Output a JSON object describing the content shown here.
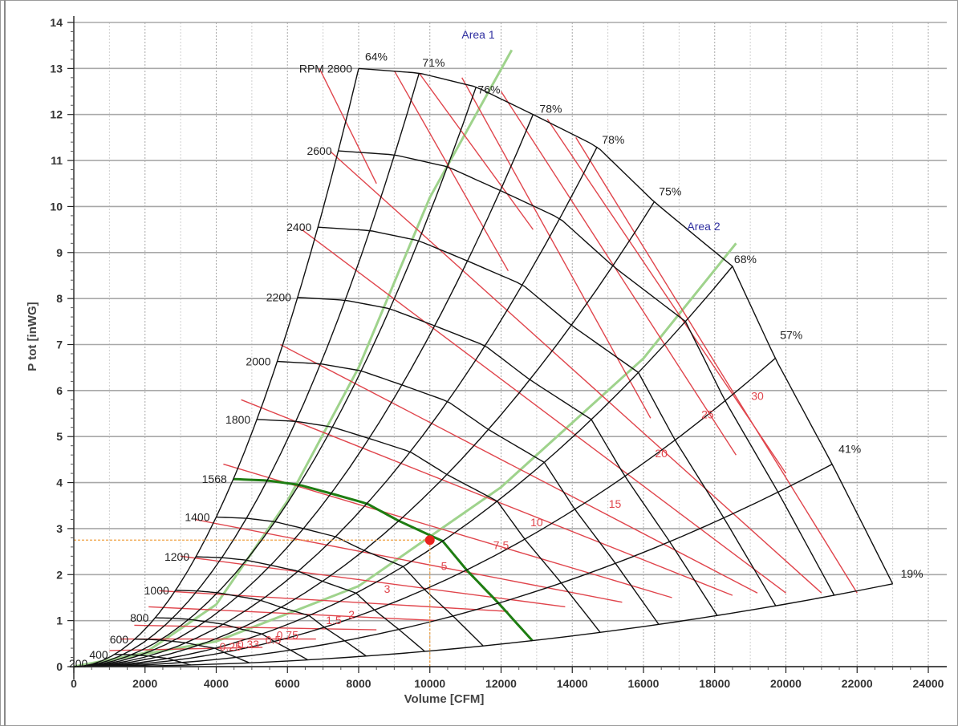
{
  "chart_data": {
    "type": "line",
    "xlabel": "Volume [CFM]",
    "ylabel": "P tot [inWG]",
    "xlim": [
      0,
      24000
    ],
    "ylim": [
      0,
      14
    ],
    "xticks": [
      0,
      2000,
      4000,
      6000,
      8000,
      10000,
      12000,
      14000,
      16000,
      18000,
      20000,
      22000,
      24000
    ],
    "yticks": [
      0,
      1,
      2,
      3,
      4,
      5,
      6,
      7,
      8,
      9,
      10,
      11,
      12,
      13,
      14
    ],
    "grid": true,
    "efficiency_line_labels": [
      "64%",
      "71%",
      "76%",
      "78%",
      "78%",
      "75%",
      "68%",
      "57%",
      "41%",
      "19%"
    ],
    "efficiency_line_endpoints": [
      {
        "x": 8000,
        "y": 13.0
      },
      {
        "x": 9700,
        "y": 12.9
      },
      {
        "x": 11300,
        "y": 12.6
      },
      {
        "x": 12900,
        "y": 12.0
      },
      {
        "x": 14700,
        "y": 11.3
      },
      {
        "x": 16300,
        "y": 10.1
      },
      {
        "x": 18500,
        "y": 8.7
      },
      {
        "x": 19700,
        "y": 6.7
      },
      {
        "x": 21300,
        "y": 4.4
      },
      {
        "x": 23000,
        "y": 1.8
      }
    ],
    "rpm_label": "RPM",
    "rpm_curves": [
      {
        "rpm": 200,
        "label": "200",
        "p_start": 0.07
      },
      {
        "rpm": 400,
        "label": "400",
        "p_start": 0.27
      },
      {
        "rpm": 600,
        "label": "600",
        "p_start": 0.6
      },
      {
        "rpm": 800,
        "label": "800",
        "p_start": 1.07
      },
      {
        "rpm": 1000,
        "label": "1000",
        "p_start": 1.66
      },
      {
        "rpm": 1200,
        "label": "1200",
        "p_start": 2.4
      },
      {
        "rpm": 1400,
        "label": "1400",
        "p_start": 3.25
      },
      {
        "rpm": 1568,
        "label": "1568",
        "p_start": 4.1
      },
      {
        "rpm": 1800,
        "label": "1800",
        "p_start": 5.4
      },
      {
        "rpm": 2000,
        "label": "2000",
        "p_start": 6.63
      },
      {
        "rpm": 2200,
        "label": "2200",
        "p_start": 8.03
      },
      {
        "rpm": 2400,
        "label": "2400",
        "p_start": 9.57
      },
      {
        "rpm": 2600,
        "label": "2600",
        "p_start": 11.25
      },
      {
        "rpm": 2800,
        "label": "2800",
        "p_start": 13.0
      }
    ],
    "operating_rpm": 1568,
    "power_lines": [
      {
        "label": "0.25",
        "shown": true
      },
      {
        "label": "0.33",
        "shown": true
      },
      {
        "label": "0.5",
        "shown": true
      },
      {
        "label": "0.75",
        "shown": true
      },
      {
        "label": "1",
        "shown": false
      },
      {
        "label": "1.5",
        "shown": true
      },
      {
        "label": "2",
        "shown": true
      },
      {
        "label": "3",
        "shown": true
      },
      {
        "label": "5",
        "shown": true
      },
      {
        "label": "7.5",
        "shown": true
      },
      {
        "label": "10",
        "shown": true
      },
      {
        "label": "15",
        "shown": true
      },
      {
        "label": "20",
        "shown": true
      },
      {
        "label": "25",
        "shown": true
      },
      {
        "label": "30",
        "shown": true
      }
    ],
    "area_curves": [
      {
        "label": "Area 1",
        "points": [
          [
            0,
            0
          ],
          [
            2000,
            0.3
          ],
          [
            4000,
            1.35
          ],
          [
            6000,
            3.6
          ],
          [
            8000,
            6.5
          ],
          [
            10000,
            10.2
          ],
          [
            12300,
            13.4
          ]
        ]
      },
      {
        "label": "Area 2",
        "points": [
          [
            0,
            0
          ],
          [
            4000,
            0.55
          ],
          [
            8000,
            1.75
          ],
          [
            12000,
            3.9
          ],
          [
            16000,
            6.7
          ],
          [
            18600,
            9.2
          ]
        ]
      }
    ],
    "operating_point": {
      "x": 10000,
      "y": 2.75
    },
    "colors": {
      "rpm": "#111111",
      "efficiency": "#111111",
      "power": "#e0454c",
      "area": "#9fd38c",
      "operating_rpm": "#1e7d12",
      "operating_point": "#e8231f",
      "guide": "#f0a040",
      "area_label": "#2f2fa0",
      "grid_major": "#a8a8a8",
      "grid_minor": "#d0d0d0"
    }
  }
}
